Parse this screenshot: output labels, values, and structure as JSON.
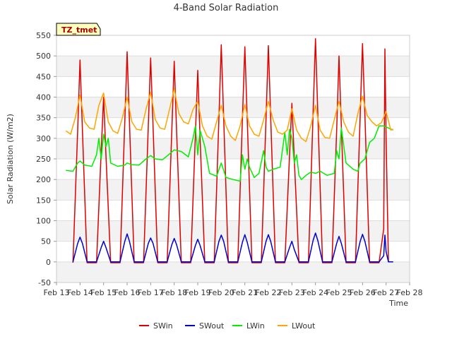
{
  "chart_data": {
    "type": "line",
    "title": "4-Band Solar Radiation",
    "xlabel": "Time",
    "ylabel": "Solar Radiation (W/m2)",
    "site_tag": "TZ_tmet",
    "xlim": [
      13,
      28
    ],
    "ylim": [
      -50,
      550
    ],
    "x_ticks": [
      13,
      14,
      15,
      16,
      17,
      18,
      19,
      20,
      21,
      22,
      23,
      24,
      25,
      26,
      27,
      28
    ],
    "x_tick_labels": [
      "Feb 13",
      "Feb 14",
      "Feb 15",
      "Feb 16",
      "Feb 17",
      "Feb 18",
      "Feb 19",
      "Feb 20",
      "Feb 21",
      "Feb 22",
      "Feb 23",
      "Feb 24",
      "Feb 25",
      "Feb 26",
      "Feb 27",
      "Feb 28"
    ],
    "y_ticks": [
      -50,
      0,
      50,
      100,
      150,
      200,
      250,
      300,
      350,
      400,
      450,
      500,
      550
    ],
    "grid": "horizontal bands",
    "legend_position": "bottom",
    "series": [
      {
        "name": "SWin",
        "color": "#dd0000",
        "x": [
          13.7,
          13.9,
          14.0,
          14.1,
          14.3,
          14.7,
          14.9,
          15.0,
          15.1,
          15.3,
          15.7,
          15.9,
          16.0,
          16.1,
          16.3,
          16.7,
          16.9,
          17.0,
          17.1,
          17.3,
          17.7,
          17.9,
          18.0,
          18.1,
          18.3,
          18.7,
          18.9,
          19.0,
          19.1,
          19.3,
          19.7,
          19.9,
          20.0,
          20.1,
          20.3,
          20.7,
          20.9,
          21.0,
          21.1,
          21.3,
          21.7,
          21.9,
          22.0,
          22.1,
          22.3,
          22.7,
          22.9,
          23.0,
          23.1,
          23.3,
          23.7,
          23.9,
          24.0,
          24.1,
          24.3,
          24.7,
          24.9,
          25.0,
          25.1,
          25.3,
          25.7,
          25.9,
          26.0,
          26.1,
          26.3,
          26.7,
          26.9,
          26.95,
          27.0,
          27.1,
          27.3
        ],
        "y": [
          -2,
          320,
          490,
          320,
          -2,
          -2,
          270,
          400,
          260,
          -2,
          -2,
          340,
          510,
          340,
          -2,
          -2,
          330,
          495,
          330,
          -2,
          -2,
          320,
          487,
          320,
          -2,
          -2,
          310,
          465,
          300,
          -2,
          -2,
          350,
          527,
          350,
          -2,
          -2,
          350,
          522,
          350,
          -2,
          -2,
          350,
          525,
          350,
          -2,
          -2,
          260,
          385,
          250,
          -2,
          -2,
          360,
          542,
          360,
          -2,
          -2,
          320,
          500,
          330,
          -2,
          -2,
          355,
          530,
          355,
          -2,
          -2,
          80,
          517,
          300,
          0,
          0
        ]
      },
      {
        "name": "SWout",
        "color": "#0000cc",
        "x": [
          13.7,
          13.9,
          14.0,
          14.1,
          14.3,
          14.7,
          14.9,
          15.0,
          15.1,
          15.3,
          15.7,
          15.9,
          16.0,
          16.1,
          16.3,
          16.7,
          16.9,
          17.0,
          17.1,
          17.3,
          17.7,
          17.9,
          18.0,
          18.1,
          18.3,
          18.7,
          18.9,
          19.0,
          19.1,
          19.3,
          19.7,
          19.9,
          20.0,
          20.1,
          20.3,
          20.7,
          20.9,
          21.0,
          21.1,
          21.3,
          21.7,
          21.9,
          22.0,
          22.1,
          22.3,
          22.7,
          22.9,
          23.0,
          23.1,
          23.3,
          23.7,
          23.9,
          24.0,
          24.1,
          24.3,
          24.7,
          24.9,
          25.0,
          25.1,
          25.3,
          25.7,
          25.9,
          26.0,
          26.1,
          26.3,
          26.7,
          26.9,
          26.95,
          27.0,
          27.1,
          27.3
        ],
        "y": [
          0,
          45,
          60,
          45,
          0,
          0,
          35,
          50,
          35,
          0,
          0,
          50,
          68,
          50,
          0,
          0,
          45,
          58,
          45,
          0,
          0,
          42,
          57,
          42,
          0,
          0,
          40,
          55,
          40,
          0,
          0,
          50,
          65,
          50,
          0,
          0,
          48,
          66,
          48,
          0,
          0,
          50,
          66,
          50,
          0,
          0,
          35,
          50,
          30,
          0,
          0,
          52,
          70,
          52,
          0,
          0,
          45,
          62,
          45,
          0,
          0,
          50,
          67,
          50,
          0,
          0,
          15,
          65,
          25,
          0,
          0
        ]
      },
      {
        "name": "LWin",
        "color": "#00ee00",
        "x": [
          13.4,
          13.7,
          13.9,
          14.0,
          14.2,
          14.5,
          14.7,
          14.8,
          14.9,
          15.0,
          15.1,
          15.2,
          15.3,
          15.6,
          15.9,
          16.0,
          16.2,
          16.5,
          16.8,
          17.0,
          17.2,
          17.5,
          17.8,
          18.0,
          18.3,
          18.6,
          18.8,
          18.9,
          19.0,
          19.1,
          19.3,
          19.5,
          19.8,
          20.0,
          20.2,
          20.5,
          20.8,
          20.9,
          21.0,
          21.1,
          21.2,
          21.4,
          21.6,
          21.8,
          21.9,
          22.0,
          22.2,
          22.5,
          22.7,
          22.8,
          22.9,
          23.0,
          23.1,
          23.2,
          23.3,
          23.4,
          23.6,
          23.8,
          24.0,
          24.2,
          24.5,
          24.8,
          24.9,
          25.0,
          25.1,
          25.3,
          25.6,
          25.8,
          25.9,
          26.1,
          26.3,
          26.5,
          26.7,
          26.9,
          27.1,
          27.3
        ],
        "y": [
          222,
          220,
          240,
          245,
          235,
          232,
          260,
          300,
          250,
          310,
          280,
          300,
          240,
          232,
          235,
          240,
          236,
          235,
          250,
          258,
          250,
          248,
          262,
          272,
          268,
          255,
          300,
          330,
          260,
          320,
          280,
          215,
          208,
          240,
          205,
          200,
          196,
          260,
          225,
          250,
          230,
          205,
          215,
          270,
          230,
          220,
          225,
          230,
          315,
          260,
          322,
          300,
          240,
          260,
          210,
          200,
          210,
          218,
          215,
          220,
          210,
          215,
          270,
          250,
          325,
          240,
          225,
          220,
          240,
          250,
          290,
          300,
          330,
          330,
          325,
          320
        ]
      },
      {
        "name": "LWout",
        "color": "#ffa500",
        "x": [
          13.4,
          13.6,
          13.8,
          14.0,
          14.2,
          14.4,
          14.6,
          14.8,
          15.0,
          15.2,
          15.4,
          15.6,
          15.8,
          16.0,
          16.2,
          16.4,
          16.6,
          16.8,
          17.0,
          17.2,
          17.4,
          17.6,
          17.8,
          18.0,
          18.2,
          18.4,
          18.6,
          18.8,
          19.0,
          19.2,
          19.4,
          19.6,
          19.8,
          20.0,
          20.2,
          20.4,
          20.6,
          20.8,
          21.0,
          21.2,
          21.4,
          21.6,
          21.8,
          22.0,
          22.2,
          22.4,
          22.6,
          22.8,
          23.0,
          23.2,
          23.4,
          23.6,
          23.8,
          24.0,
          24.2,
          24.4,
          24.6,
          24.8,
          25.0,
          25.2,
          25.4,
          25.6,
          25.8,
          26.0,
          26.2,
          26.4,
          26.6,
          26.8,
          27.0,
          27.2,
          27.3
        ],
        "y": [
          318,
          310,
          350,
          405,
          340,
          325,
          322,
          380,
          410,
          340,
          318,
          312,
          350,
          400,
          340,
          322,
          320,
          370,
          412,
          345,
          325,
          322,
          370,
          420,
          360,
          340,
          335,
          370,
          390,
          330,
          305,
          298,
          340,
          380,
          330,
          305,
          295,
          330,
          382,
          330,
          310,
          305,
          345,
          390,
          345,
          315,
          310,
          320,
          372,
          320,
          300,
          292,
          330,
          380,
          320,
          302,
          300,
          345,
          390,
          340,
          315,
          305,
          360,
          402,
          355,
          340,
          330,
          338,
          365,
          320,
          322
        ]
      }
    ]
  }
}
